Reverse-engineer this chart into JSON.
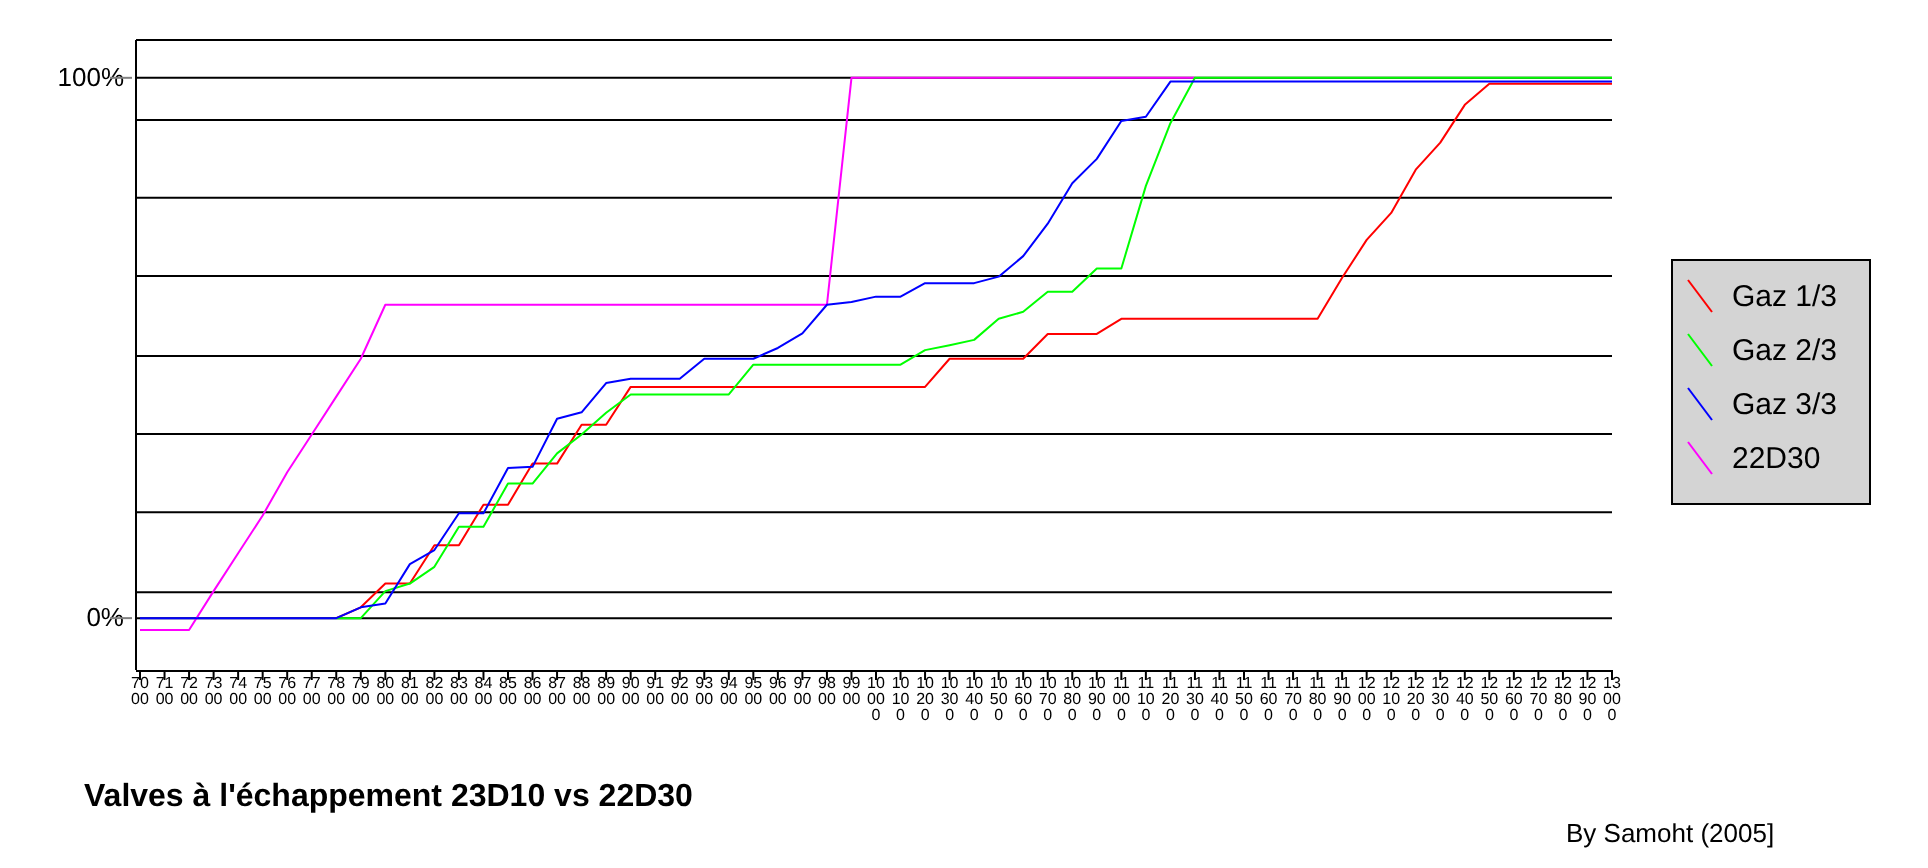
{
  "chart_data": {
    "type": "line",
    "title": "Valves à l'échappement 23D10 vs 22D30",
    "annotations": [
      "By Samoht (2005]"
    ],
    "categories": [
      "7000",
      "7100",
      "7200",
      "7300",
      "7400",
      "7500",
      "7600",
      "7700",
      "7800",
      "7900",
      "8000",
      "8100",
      "8200",
      "8300",
      "8400",
      "8500",
      "8600",
      "8700",
      "8800",
      "8900",
      "9000",
      "9100",
      "9200",
      "9300",
      "9400",
      "9500",
      "9600",
      "9700",
      "9800",
      "9900",
      "10000",
      "10100",
      "10200",
      "10300",
      "10400",
      "10500",
      "10600",
      "10700",
      "10800",
      "10900",
      "11000",
      "11100",
      "11200",
      "11300",
      "11400",
      "11500",
      "11600",
      "11700",
      "11800",
      "11900",
      "12000",
      "12100",
      "12200",
      "12300",
      "12400",
      "12500",
      "12600",
      "12700",
      "12800",
      "12900",
      "13000"
    ],
    "ylim": [
      -9.6,
      107
    ],
    "yticks": [
      {
        "value": 0,
        "label": "0%"
      },
      {
        "value": 4.8,
        "label": null
      },
      {
        "value": 19.6,
        "label": null
      },
      {
        "value": 34.1,
        "label": null
      },
      {
        "value": 48.5,
        "label": null
      },
      {
        "value": 63.3,
        "label": null
      },
      {
        "value": 77.8,
        "label": null
      },
      {
        "value": 92.2,
        "label": null
      },
      {
        "value": 100,
        "label": "100%"
      },
      {
        "value": 107,
        "label": null
      }
    ],
    "grid": "y",
    "legend": "right",
    "marker": "none",
    "line_style": "solid",
    "series": [
      {
        "name": "22D30",
        "color": "#ff00ff",
        "values": [
          -2.2,
          -2.2,
          -2.2,
          5,
          12,
          19,
          27,
          34,
          41,
          48,
          58,
          58,
          58,
          58,
          58,
          58,
          58,
          58,
          58,
          58,
          58,
          58,
          58,
          58,
          58,
          58,
          58,
          58,
          58,
          100,
          100,
          100,
          100,
          100,
          100,
          100,
          100,
          100,
          100,
          100,
          100,
          100,
          100,
          100,
          null,
          null,
          null,
          null,
          null,
          null,
          null,
          null,
          null,
          null,
          null,
          null,
          null,
          null,
          null,
          null,
          null
        ]
      },
      {
        "name": "Gaz 1/3",
        "color": "#ff0000",
        "values": [
          null,
          null,
          null,
          null,
          null,
          null,
          null,
          null,
          0,
          2,
          6.4,
          6.4,
          13.5,
          13.5,
          21,
          21,
          28.6,
          28.6,
          35.8,
          35.8,
          42.8,
          42.8,
          42.8,
          42.8,
          42.8,
          42.8,
          42.8,
          42.8,
          42.8,
          42.8,
          42.8,
          42.8,
          42.8,
          48,
          48,
          48,
          48,
          52.6,
          52.6,
          52.6,
          55.4,
          55.4,
          55.4,
          55.4,
          55.4,
          55.4,
          55.4,
          55.4,
          55.4,
          63,
          70,
          75,
          83,
          88,
          95,
          98.9,
          98.9,
          98.9,
          98.9,
          98.9,
          98.9
        ]
      },
      {
        "name": "Gaz 2/3",
        "color": "#00ff00",
        "values": [
          null,
          null,
          null,
          null,
          null,
          null,
          null,
          null,
          0,
          0,
          5,
          6.4,
          9.5,
          16.9,
          16.9,
          24.9,
          24.9,
          30.5,
          34,
          38,
          41.4,
          41.4,
          41.4,
          41.4,
          41.4,
          46.9,
          46.9,
          46.9,
          46.9,
          46.9,
          46.9,
          46.9,
          49.6,
          50.5,
          51.5,
          55.4,
          56.7,
          60.4,
          60.4,
          64.7,
          64.7,
          80,
          91.6,
          100,
          100,
          100,
          100,
          100,
          100,
          100,
          100,
          100,
          100,
          100,
          100,
          100,
          100,
          100,
          100,
          100,
          100
        ]
      },
      {
        "name": "Gaz 3/3",
        "color": "#0000ff",
        "values": [
          0,
          0,
          0,
          0,
          0,
          0,
          0,
          0,
          0,
          2,
          2.7,
          10,
          12.6,
          19.4,
          19.4,
          27.8,
          28,
          36.9,
          38.1,
          43.5,
          44.3,
          44.3,
          44.3,
          48,
          48,
          48,
          50,
          52.7,
          58,
          58.5,
          59.5,
          59.5,
          62,
          62,
          62,
          63.2,
          67,
          73,
          80.5,
          85,
          92,
          92.8,
          99.3,
          99.3,
          99.3,
          99.3,
          99.3,
          99.3,
          99.3,
          99.3,
          99.3,
          99.3,
          99.3,
          99.3,
          99.3,
          99.3,
          99.3,
          99.3,
          99.3,
          99.3,
          99.3
        ]
      }
    ]
  }
}
